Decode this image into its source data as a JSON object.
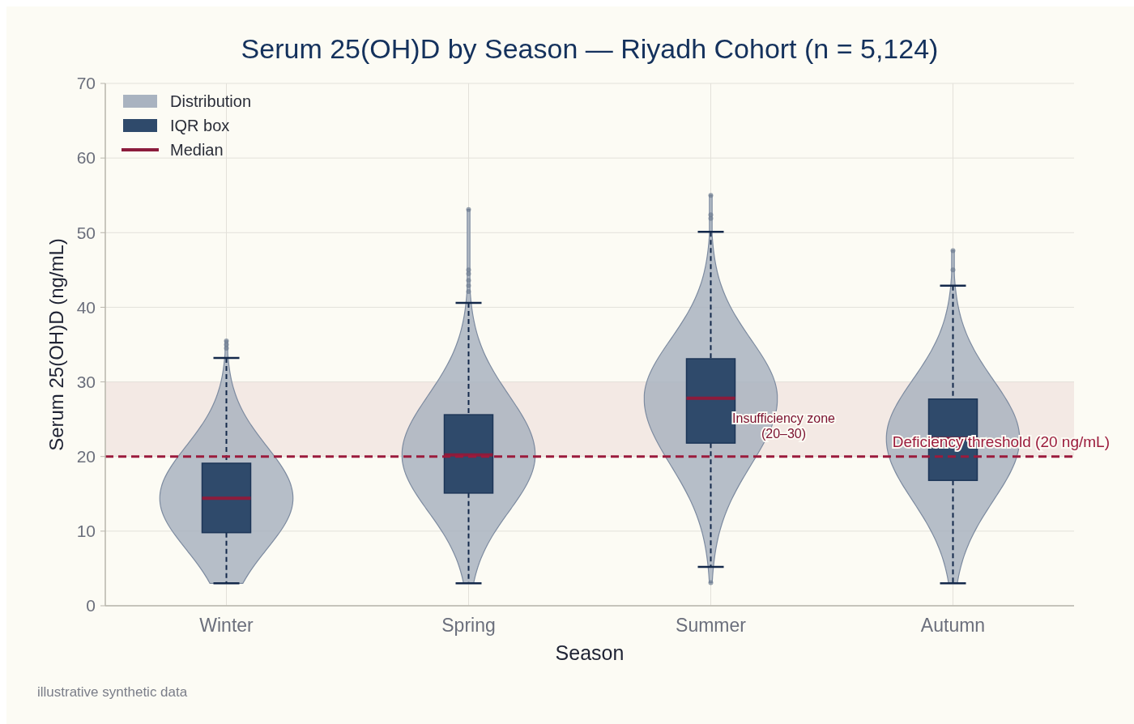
{
  "chart_data": {
    "type": "box",
    "title": "Serum 25(OH)D by Season — Riyadh Cohort (n = 5,124)",
    "xlabel": "Season",
    "ylabel": "Serum 25(OH)D (ng/mL)",
    "categories": [
      "Winter",
      "Spring",
      "Summer",
      "Autumn"
    ],
    "boxes": [
      {
        "low": 3,
        "q1": 9.8,
        "median": 14.4,
        "q3": 19.1,
        "high": 33.2,
        "outliers": [
          35.5,
          35,
          34.5
        ]
      },
      {
        "low": 3,
        "q1": 15.1,
        "median": 20.2,
        "q3": 25.6,
        "high": 40.6,
        "outliers": [
          53.1,
          45,
          44.5,
          43.6,
          42.9,
          42.1
        ]
      },
      {
        "low": 5.2,
        "q1": 21.8,
        "median": 27.8,
        "q3": 33.1,
        "high": 50.1,
        "outliers": [
          55,
          52.4,
          51.9,
          3.1
        ]
      },
      {
        "low": 3,
        "q1": 16.8,
        "median": 22.4,
        "q3": 27.7,
        "high": 42.9,
        "outliers": [
          47.6,
          45
        ]
      }
    ],
    "ylim": [
      0,
      70
    ],
    "yticks": [
      0,
      10,
      20,
      30,
      40,
      50,
      60,
      70
    ],
    "grid": true,
    "ref_lines": [
      {
        "axis": "y",
        "value": 20,
        "label": "Deficiency threshold (20 ng/mL)",
        "color": "#9b1b3c",
        "line_style": "dashed"
      }
    ],
    "bands": [
      {
        "axis": "y",
        "from": 20,
        "to": 30,
        "label": "Insufficiency zone (20–30)",
        "color": "#f3e9e4"
      }
    ],
    "annotations": [
      "Distribution",
      "IQR box",
      "Median",
      "illustrative synthetic data"
    ]
  }
}
